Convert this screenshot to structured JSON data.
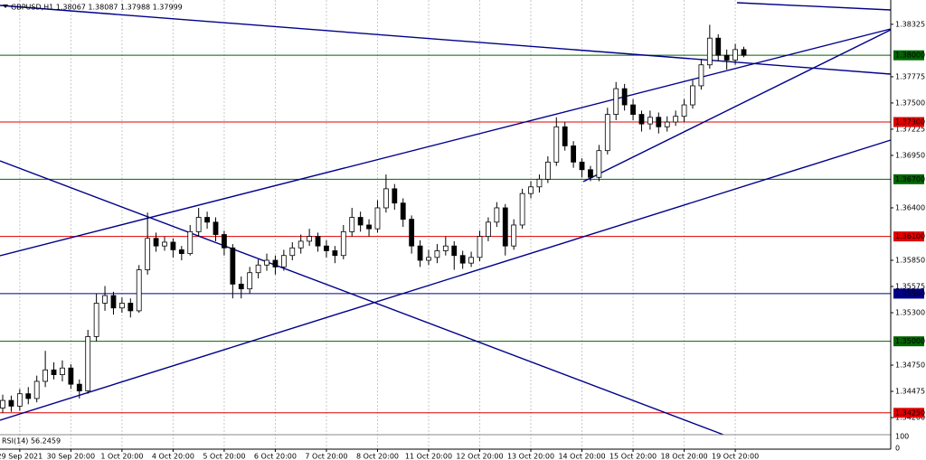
{
  "chart_data": {
    "type": "candlestick",
    "title": "GBPUSD,H1 1.38067 1.38087 1.37988 1.37999",
    "up_color": "#ffffff",
    "down_color": "#000000",
    "wick_color": "#000000",
    "ylim": [
      1.3403,
      1.3858
    ],
    "xlim": [
      -0.32,
      104.25
    ],
    "grid": true,
    "yticks": [
      {
        "value": 1.38325,
        "label": "1.38325"
      },
      {
        "value": 1.37775,
        "label": "1.37775"
      },
      {
        "value": 1.375,
        "label": "1.37500"
      },
      {
        "value": 1.37225,
        "label": "1.37225"
      },
      {
        "value": 1.3695,
        "label": "1.36950"
      },
      {
        "value": 1.364,
        "label": "1.36400"
      },
      {
        "value": 1.3585,
        "label": "1.35850"
      },
      {
        "value": 1.35575,
        "label": "1.35575"
      },
      {
        "value": 1.353,
        "label": "1.35300"
      },
      {
        "value": 1.3475,
        "label": "1.34750"
      },
      {
        "value": 1.34475,
        "label": "1.34475"
      },
      {
        "value": 1.342,
        "label": "1.34200"
      }
    ],
    "xticks": [
      {
        "value": 2,
        "label": "29 Sep 2021"
      },
      {
        "value": 8,
        "label": "30 Sep 20:00"
      },
      {
        "value": 14,
        "label": "1 Oct 20:00"
      },
      {
        "value": 20,
        "label": "4 Oct 20:00"
      },
      {
        "value": 26,
        "label": "5 Oct 20:00"
      },
      {
        "value": 32,
        "label": "6 Oct 20:00"
      },
      {
        "value": 38,
        "label": "7 Oct 20:00"
      },
      {
        "value": 44,
        "label": "8 Oct 20:00"
      },
      {
        "value": 50,
        "label": "11 Oct 20:00"
      },
      {
        "value": 56,
        "label": "12 Oct 20:00"
      },
      {
        "value": 62,
        "label": "13 Oct 20:00"
      },
      {
        "value": 68,
        "label": "14 Oct 20:00"
      },
      {
        "value": 74,
        "label": "15 Oct 20:00"
      },
      {
        "value": 80,
        "label": "18 Oct 20:00"
      },
      {
        "value": 86,
        "label": "19 Oct 20:00"
      }
    ],
    "levels": [
      {
        "value": 1.38,
        "label": "1.38000",
        "color": "#006400"
      },
      {
        "value": 1.373,
        "label": "1.37300",
        "color": "#e00000"
      },
      {
        "value": 1.367,
        "label": "1.36700",
        "color": "#006400"
      },
      {
        "value": 1.361,
        "label": "1.36100",
        "color": "#e00000"
      },
      {
        "value": 1.355,
        "label": "1.35500",
        "color": "#00008b"
      },
      {
        "value": 1.35,
        "label": "1.35000",
        "color": "#006400"
      },
      {
        "value": 1.3425,
        "label": "1.34250",
        "color": "#e00000"
      }
    ],
    "indicator": {
      "label": "RSI(14) 56.2459",
      "ylim": [
        0,
        100
      ],
      "yticks": [
        100,
        0
      ]
    },
    "ohlc": [
      [
        1.343,
        1.3444,
        1.3425,
        1.3438
      ],
      [
        1.3438,
        1.3443,
        1.3426,
        1.3432
      ],
      [
        1.3432,
        1.345,
        1.3427,
        1.3445
      ],
      [
        1.3445,
        1.3452,
        1.3434,
        1.344
      ],
      [
        1.344,
        1.3464,
        1.3436,
        1.3458
      ],
      [
        1.3458,
        1.349,
        1.3452,
        1.347
      ],
      [
        1.347,
        1.3478,
        1.346,
        1.3465
      ],
      [
        1.3465,
        1.348,
        1.3458,
        1.3472
      ],
      [
        1.3472,
        1.3476,
        1.345,
        1.3455
      ],
      [
        1.3455,
        1.346,
        1.344,
        1.3448
      ],
      [
        1.3448,
        1.3512,
        1.3445,
        1.3505
      ],
      [
        1.3505,
        1.355,
        1.35,
        1.354
      ],
      [
        1.354,
        1.3558,
        1.3532,
        1.3548
      ],
      [
        1.3548,
        1.3552,
        1.3528,
        1.3535
      ],
      [
        1.3535,
        1.3546,
        1.353,
        1.354
      ],
      [
        1.354,
        1.3545,
        1.3525,
        1.3532
      ],
      [
        1.3532,
        1.358,
        1.353,
        1.3575
      ],
      [
        1.3575,
        1.3635,
        1.357,
        1.3608
      ],
      [
        1.3608,
        1.3614,
        1.3594,
        1.36
      ],
      [
        1.36,
        1.361,
        1.3595,
        1.3604
      ],
      [
        1.3604,
        1.3608,
        1.3588,
        1.3596
      ],
      [
        1.3596,
        1.36,
        1.3585,
        1.3592
      ],
      [
        1.3592,
        1.3622,
        1.359,
        1.3615
      ],
      [
        1.3615,
        1.364,
        1.361,
        1.363
      ],
      [
        1.363,
        1.3636,
        1.3618,
        1.3625
      ],
      [
        1.3625,
        1.363,
        1.3605,
        1.3612
      ],
      [
        1.3612,
        1.3616,
        1.359,
        1.3598
      ],
      [
        1.3598,
        1.3602,
        1.3545,
        1.356
      ],
      [
        1.356,
        1.3568,
        1.3545,
        1.3555
      ],
      [
        1.3555,
        1.3578,
        1.355,
        1.3572
      ],
      [
        1.3572,
        1.3586,
        1.3566,
        1.358
      ],
      [
        1.358,
        1.3592,
        1.3574,
        1.3585
      ],
      [
        1.3585,
        1.359,
        1.357,
        1.3578
      ],
      [
        1.3578,
        1.3596,
        1.3574,
        1.359
      ],
      [
        1.359,
        1.3604,
        1.3585,
        1.3598
      ],
      [
        1.3598,
        1.3612,
        1.3592,
        1.3605
      ],
      [
        1.3605,
        1.3618,
        1.36,
        1.361
      ],
      [
        1.361,
        1.3614,
        1.3594,
        1.36
      ],
      [
        1.36,
        1.3606,
        1.3588,
        1.3595
      ],
      [
        1.3595,
        1.36,
        1.3582,
        1.359
      ],
      [
        1.359,
        1.3622,
        1.3586,
        1.3615
      ],
      [
        1.3615,
        1.364,
        1.361,
        1.363
      ],
      [
        1.363,
        1.3636,
        1.3615,
        1.3622
      ],
      [
        1.3622,
        1.3628,
        1.361,
        1.3618
      ],
      [
        1.3618,
        1.3648,
        1.3614,
        1.364
      ],
      [
        1.364,
        1.3675,
        1.3635,
        1.366
      ],
      [
        1.366,
        1.3665,
        1.3638,
        1.3645
      ],
      [
        1.3645,
        1.365,
        1.362,
        1.3628
      ],
      [
        1.3628,
        1.3632,
        1.3592,
        1.36
      ],
      [
        1.36,
        1.3606,
        1.3578,
        1.3585
      ],
      [
        1.3585,
        1.3596,
        1.358,
        1.3588
      ],
      [
        1.3588,
        1.3602,
        1.3582,
        1.3595
      ],
      [
        1.3595,
        1.361,
        1.359,
        1.36
      ],
      [
        1.36,
        1.3605,
        1.3575,
        1.359
      ],
      [
        1.359,
        1.3595,
        1.3576,
        1.3582
      ],
      [
        1.3582,
        1.3594,
        1.3578,
        1.3588
      ],
      [
        1.3588,
        1.3616,
        1.3584,
        1.361
      ],
      [
        1.361,
        1.363,
        1.3605,
        1.3625
      ],
      [
        1.3625,
        1.3646,
        1.362,
        1.364
      ],
      [
        1.364,
        1.3644,
        1.359,
        1.36
      ],
      [
        1.36,
        1.3628,
        1.3596,
        1.3622
      ],
      [
        1.3622,
        1.366,
        1.3618,
        1.3655
      ],
      [
        1.3655,
        1.3668,
        1.365,
        1.3662
      ],
      [
        1.3662,
        1.3675,
        1.3656,
        1.367
      ],
      [
        1.367,
        1.3694,
        1.3666,
        1.3688
      ],
      [
        1.3688,
        1.3735,
        1.3684,
        1.3725
      ],
      [
        1.3725,
        1.373,
        1.37,
        1.3705
      ],
      [
        1.3705,
        1.371,
        1.3682,
        1.3688
      ],
      [
        1.3688,
        1.3692,
        1.3672,
        1.368
      ],
      [
        1.368,
        1.3684,
        1.3668,
        1.3672
      ],
      [
        1.3672,
        1.3706,
        1.3668,
        1.37
      ],
      [
        1.37,
        1.3745,
        1.3696,
        1.3738
      ],
      [
        1.3738,
        1.3772,
        1.3732,
        1.3765
      ],
      [
        1.3765,
        1.377,
        1.3742,
        1.3748
      ],
      [
        1.3748,
        1.3754,
        1.3732,
        1.3738
      ],
      [
        1.3738,
        1.3742,
        1.372,
        1.3728
      ],
      [
        1.3728,
        1.3742,
        1.3722,
        1.3735
      ],
      [
        1.3735,
        1.374,
        1.3718,
        1.3725
      ],
      [
        1.3725,
        1.3736,
        1.372,
        1.373
      ],
      [
        1.373,
        1.3742,
        1.3726,
        1.3736
      ],
      [
        1.3736,
        1.3754,
        1.373,
        1.3748
      ],
      [
        1.3748,
        1.3774,
        1.3744,
        1.3768
      ],
      [
        1.3768,
        1.3796,
        1.3764,
        1.379
      ],
      [
        1.379,
        1.3832,
        1.3786,
        1.3818
      ],
      [
        1.3818,
        1.3822,
        1.3794,
        1.38
      ],
      [
        1.38,
        1.3806,
        1.3785,
        1.3795
      ],
      [
        1.3795,
        1.3812,
        1.379,
        1.3806
      ],
      [
        1.3806,
        1.3809,
        1.3798,
        1.38
      ]
    ]
  }
}
